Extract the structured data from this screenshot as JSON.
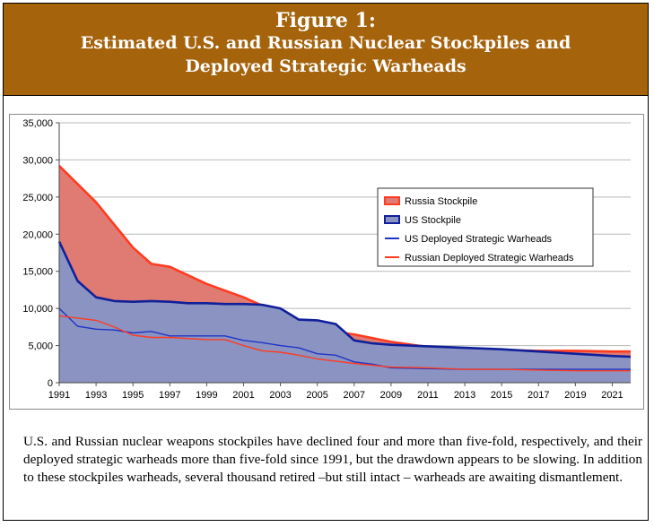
{
  "header": {
    "line1": "Figure 1:",
    "line2": "Estimated U.S. and Russian Nuclear Stockpiles and",
    "line3": "Deployed Strategic Warheads",
    "background": "#a5630c"
  },
  "caption": "U.S. and Russian nuclear weapons stockpiles have declined four and more than five-fold, respectively, and their deployed strategic warheads more than five-fold since 1991, but the drawdown appears to be slowing. In addition to these stockpiles warheads, several thousand retired –but still intact – warheads are awaiting dismantlement.",
  "chart_data": {
    "type": "area",
    "title": "",
    "xlabel": "",
    "ylabel": "",
    "xlim": [
      1991,
      2022
    ],
    "ylim": [
      0,
      35000
    ],
    "y_ticks": [
      "0",
      "5,000",
      "10,000",
      "15,000",
      "20,000",
      "25,000",
      "30,000",
      "35,000"
    ],
    "x_ticks": [
      "1991",
      "1993",
      "1995",
      "1997",
      "1999",
      "2001",
      "2003",
      "2005",
      "2007",
      "2009",
      "2011",
      "2013",
      "2015",
      "2017",
      "2019",
      "2021"
    ],
    "grid": "horizontal",
    "legend_position": "right",
    "series": [
      {
        "name": "Russia Stockpile",
        "kind": "area",
        "fill": "#e07b73",
        "stroke": "#ff3b1f",
        "x": [
          1991,
          1993,
          1995,
          1996,
          1997,
          1999,
          2001,
          2002,
          2003,
          2005,
          2007,
          2009,
          2011,
          2013,
          2015,
          2017,
          2019,
          2021,
          2022
        ],
        "values": [
          29200,
          24300,
          18200,
          16000,
          15600,
          13300,
          11500,
          10400,
          9000,
          7200,
          6500,
          5500,
          4800,
          4500,
          4400,
          4300,
          4300,
          4200,
          4200
        ]
      },
      {
        "name": "US Stockpile",
        "kind": "area",
        "fill": "#8a93c2",
        "stroke": "#10209a",
        "x": [
          1991,
          1992,
          1993,
          1994,
          1995,
          1996,
          1997,
          1998,
          1999,
          2000,
          2001,
          2002,
          2003,
          2004,
          2005,
          2006,
          2007,
          2008,
          2009,
          2011,
          2013,
          2015,
          2017,
          2019,
          2021,
          2022
        ],
        "values": [
          19000,
          13700,
          11500,
          11000,
          10900,
          11000,
          10900,
          10700,
          10700,
          10600,
          10600,
          10500,
          10000,
          8500,
          8400,
          7900,
          5700,
          5300,
          5100,
          4900,
          4700,
          4500,
          4200,
          3900,
          3600,
          3500
        ]
      },
      {
        "name": "US Deployed Strategic Warheads",
        "kind": "line",
        "stroke": "#1f35c8",
        "x": [
          1991,
          1992,
          1993,
          1994,
          1995,
          1996,
          1997,
          1999,
          2000,
          2001,
          2002,
          2003,
          2004,
          2005,
          2006,
          2007,
          2008,
          2009,
          2011,
          2013,
          2015,
          2017,
          2019,
          2021,
          2022
        ],
        "values": [
          10000,
          7600,
          7200,
          7100,
          6700,
          6900,
          6300,
          6300,
          6300,
          5700,
          5400,
          5000,
          4700,
          3900,
          3700,
          2800,
          2500,
          2000,
          1900,
          1800,
          1800,
          1800,
          1800,
          1800,
          1800
        ]
      },
      {
        "name": "Russian Deployed Strategic Warheads",
        "kind": "line",
        "stroke": "#ff3b1f",
        "x": [
          1991,
          1993,
          1994,
          1995,
          1996,
          1997,
          1999,
          2000,
          2001,
          2002,
          2003,
          2004,
          2005,
          2007,
          2009,
          2011,
          2013,
          2015,
          2017,
          2019,
          2021,
          2022
        ],
        "values": [
          9000,
          8400,
          7500,
          6400,
          6100,
          6100,
          5800,
          5800,
          5000,
          4300,
          4100,
          3700,
          3200,
          2600,
          2100,
          2000,
          1800,
          1800,
          1700,
          1600,
          1600,
          1600
        ]
      }
    ]
  }
}
